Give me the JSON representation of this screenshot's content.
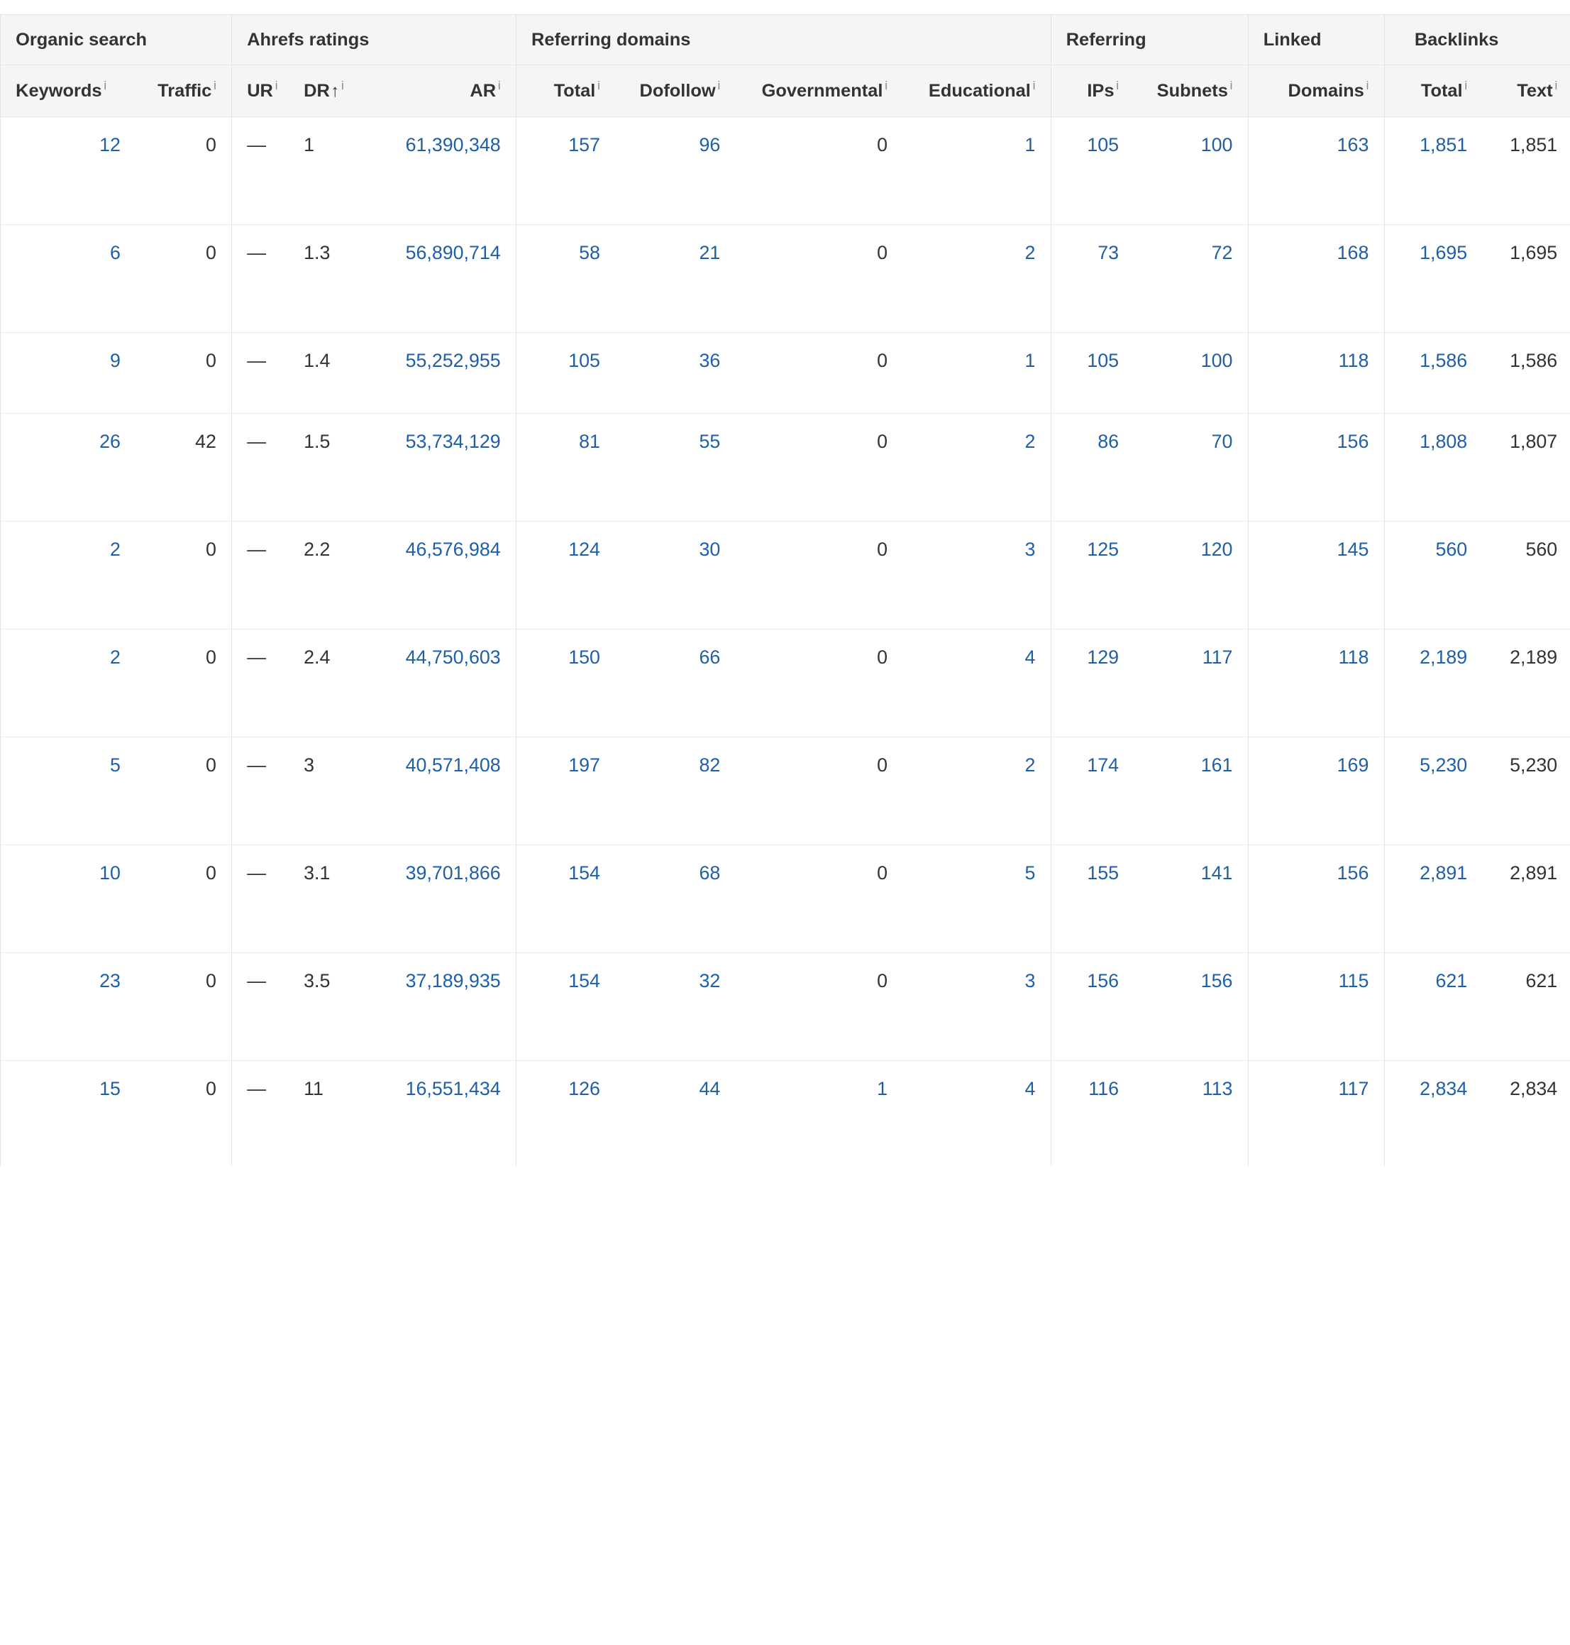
{
  "groups": [
    {
      "label": "Organic search"
    },
    {
      "label": "Ahrefs ratings"
    },
    {
      "label": "Referring domains"
    },
    {
      "label": "Referring"
    },
    {
      "label": "Linked"
    },
    {
      "label": "Backlinks"
    }
  ],
  "columns": {
    "keywords": "Keywords",
    "traffic": "Traffic",
    "ur": "UR",
    "dr": "DR",
    "ar": "AR",
    "rd_total": "Total",
    "dofollow": "Dofollow",
    "governmental": "Governmental",
    "educational": "Educational",
    "ips": "IPs",
    "subnets": "Subnets",
    "linked_domains": "Domains",
    "bl_total": "Total",
    "bl_text": "Text"
  },
  "info_glyph": "i",
  "sort_arrow": "↑",
  "rows": [
    {
      "keywords": "12",
      "traffic": "0",
      "ur": "—",
      "dr": "1",
      "ar": "61,390,348",
      "rd_total": "157",
      "dofollow": "96",
      "gov": "0",
      "edu": "1",
      "ips": "105",
      "subnets": "100",
      "linked": "163",
      "bl_total": "1,851",
      "bl_text": "1,851"
    },
    {
      "keywords": "6",
      "traffic": "0",
      "ur": "—",
      "dr": "1.3",
      "ar": "56,890,714",
      "rd_total": "58",
      "dofollow": "21",
      "gov": "0",
      "edu": "2",
      "ips": "73",
      "subnets": "72",
      "linked": "168",
      "bl_total": "1,695",
      "bl_text": "1,695"
    },
    {
      "keywords": "9",
      "traffic": "0",
      "ur": "—",
      "dr": "1.4",
      "ar": "55,252,955",
      "rd_total": "105",
      "dofollow": "36",
      "gov": "0",
      "edu": "1",
      "ips": "105",
      "subnets": "100",
      "linked": "118",
      "bl_total": "1,586",
      "bl_text": "1,586"
    },
    {
      "keywords": "26",
      "traffic": "42",
      "ur": "—",
      "dr": "1.5",
      "ar": "53,734,129",
      "rd_total": "81",
      "dofollow": "55",
      "gov": "0",
      "edu": "2",
      "ips": "86",
      "subnets": "70",
      "linked": "156",
      "bl_total": "1,808",
      "bl_text": "1,807"
    },
    {
      "keywords": "2",
      "traffic": "0",
      "ur": "—",
      "dr": "2.2",
      "ar": "46,576,984",
      "rd_total": "124",
      "dofollow": "30",
      "gov": "0",
      "edu": "3",
      "ips": "125",
      "subnets": "120",
      "linked": "145",
      "bl_total": "560",
      "bl_text": "560"
    },
    {
      "keywords": "2",
      "traffic": "0",
      "ur": "—",
      "dr": "2.4",
      "ar": "44,750,603",
      "rd_total": "150",
      "dofollow": "66",
      "gov": "0",
      "edu": "4",
      "ips": "129",
      "subnets": "117",
      "linked": "118",
      "bl_total": "2,189",
      "bl_text": "2,189"
    },
    {
      "keywords": "5",
      "traffic": "0",
      "ur": "—",
      "dr": "3",
      "ar": "40,571,408",
      "rd_total": "197",
      "dofollow": "82",
      "gov": "0",
      "edu": "2",
      "ips": "174",
      "subnets": "161",
      "linked": "169",
      "bl_total": "5,230",
      "bl_text": "5,230"
    },
    {
      "keywords": "10",
      "traffic": "0",
      "ur": "—",
      "dr": "3.1",
      "ar": "39,701,866",
      "rd_total": "154",
      "dofollow": "68",
      "gov": "0",
      "edu": "5",
      "ips": "155",
      "subnets": "141",
      "linked": "156",
      "bl_total": "2,891",
      "bl_text": "2,891"
    },
    {
      "keywords": "23",
      "traffic": "0",
      "ur": "—",
      "dr": "3.5",
      "ar": "37,189,935",
      "rd_total": "154",
      "dofollow": "32",
      "gov": "0",
      "edu": "3",
      "ips": "156",
      "subnets": "156",
      "linked": "115",
      "bl_total": "621",
      "bl_text": "621"
    },
    {
      "keywords": "15",
      "traffic": "0",
      "ur": "—",
      "dr": "11",
      "ar": "16,551,434",
      "rd_total": "126",
      "dofollow": "44",
      "gov": "1",
      "edu": "4",
      "ips": "116",
      "subnets": "113",
      "linked": "117",
      "bl_total": "2,834",
      "bl_text": "2,834"
    }
  ],
  "colors": {
    "link": "#1f5fa8",
    "text": "#333333",
    "header_bg": "#f5f5f6",
    "grid": "#e4e4e4"
  }
}
